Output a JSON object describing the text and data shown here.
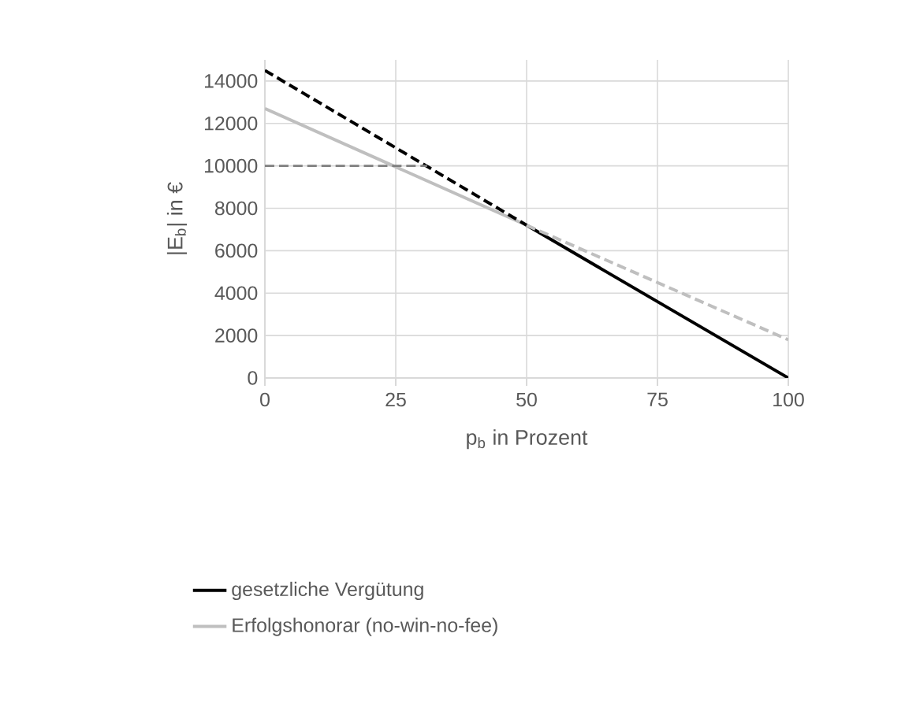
{
  "chart_data": {
    "type": "line",
    "xlabel": "p$_{b}$ in Prozent",
    "ylabel": "|E$_{b}$| in €",
    "xlim": [
      0,
      100
    ],
    "ylim": [
      0,
      15000
    ],
    "xticks": [
      0,
      25,
      50,
      75,
      100
    ],
    "yticks": [
      0,
      2000,
      4000,
      6000,
      8000,
      10000,
      12000,
      14000
    ],
    "grid": true,
    "legend": "bottom",
    "marker": "none",
    "series": [
      {
        "name": "gesetzliche Vergütung",
        "color": "#000000",
        "line_style": "solid",
        "x": [
          50,
          100
        ],
        "values": [
          7200,
          0
        ]
      },
      {
        "name": "Erfolgshonorar (no-win-no-fee)",
        "color": "#bfbfbf",
        "line_style": "solid",
        "x": [
          0,
          50
        ],
        "values": [
          12700,
          7200
        ]
      },
      {
        "color": "#000000",
        "line_style": "dashed",
        "x": [
          0,
          50
        ],
        "values": [
          14500,
          7200
        ]
      },
      {
        "color": "#bfbfbf",
        "line_style": "dashed",
        "x": [
          50,
          100
        ],
        "values": [
          7200,
          1800
        ]
      },
      {
        "color": "#7f7f7f",
        "line_style": "dashed",
        "x": [
          0,
          31
        ],
        "values": [
          10000,
          10000
        ]
      }
    ]
  }
}
